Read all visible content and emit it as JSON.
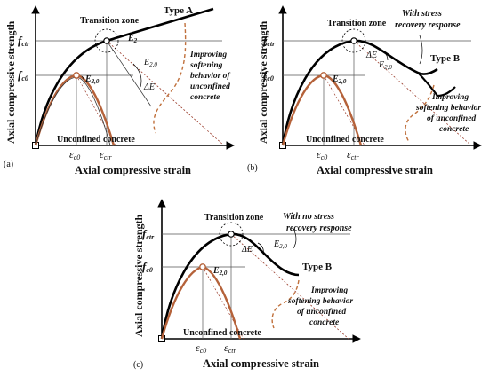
{
  "panels": [
    {
      "id": "a",
      "panel_label": "(a)",
      "x_axis_label": "Axial compressive strain",
      "y_axis_label": "Axial compressive strength",
      "transition_zone": "Transition zone",
      "type_label": "Type A",
      "response_note": [],
      "f_ctr": "f",
      "f_ctr_sub": "ctr",
      "f_c0": "f",
      "f_c0_sub": "c0",
      "eps_c0": "ε",
      "eps_c0_sub": "c0",
      "eps_ctr": "ε",
      "eps_ctr_sub": "ctr",
      "e2": "E",
      "e2_sub": "2",
      "e20_top": "E",
      "e20_top_sub": "2,0",
      "e20_low": "E",
      "e20_low_sub": "2,0",
      "delta_e": "ΔE",
      "improving": [
        "Improving",
        "softening",
        "behavior of",
        "unconfined",
        "concrete"
      ],
      "unconfined": "Unconfined concrete"
    },
    {
      "id": "b",
      "panel_label": "(b)",
      "x_axis_label": "Axial compressive strain",
      "y_axis_label": "Axial compressive strength",
      "transition_zone": "Transition zone",
      "type_label": "Type B",
      "response_note": [
        "With stress",
        "recovery response"
      ],
      "f_ctr": "f",
      "f_ctr_sub": "ctr",
      "f_c0": "f",
      "f_c0_sub": "c0",
      "eps_c0": "ε",
      "eps_c0_sub": "c0",
      "eps_ctr": "ε",
      "eps_ctr_sub": "ctr",
      "e20_top": "E",
      "e20_top_sub": "2,0",
      "e20_low": "E",
      "e20_low_sub": "2,0",
      "delta_e": "ΔE",
      "improving": [
        "Improving",
        "softening behavior",
        "of unconfined",
        "concrete"
      ],
      "unconfined": "Unconfined concrete"
    },
    {
      "id": "c",
      "panel_label": "(c)",
      "x_axis_label": "Axial compressive strain",
      "y_axis_label": "Axial compressive strength",
      "transition_zone": "Transition zone",
      "type_label": "Type B",
      "response_note": [
        "With no stress",
        "recovery response"
      ],
      "f_ctr": "f",
      "f_ctr_sub": "ctr",
      "f_c0": "f",
      "f_c0_sub": "c0",
      "eps_c0": "ε",
      "eps_c0_sub": "c0",
      "eps_ctr": "ε",
      "eps_ctr_sub": "ctr",
      "e20_top": "E",
      "e20_top_sub": "2,0",
      "e20_low": "E",
      "e20_low_sub": "2,0",
      "delta_e": "ΔE",
      "improving": [
        "Improving",
        "softening behavior",
        "of unconfined",
        "concrete"
      ],
      "unconfined": "Unconfined concrete"
    }
  ],
  "colors": {
    "axis": "#000000",
    "confined_curve": "#000000",
    "unconfined_curve": "#b5623a",
    "dashed_improving": "#c0703c",
    "dotted_unloading": "#9a3b2a",
    "grid_line": "#555555"
  }
}
